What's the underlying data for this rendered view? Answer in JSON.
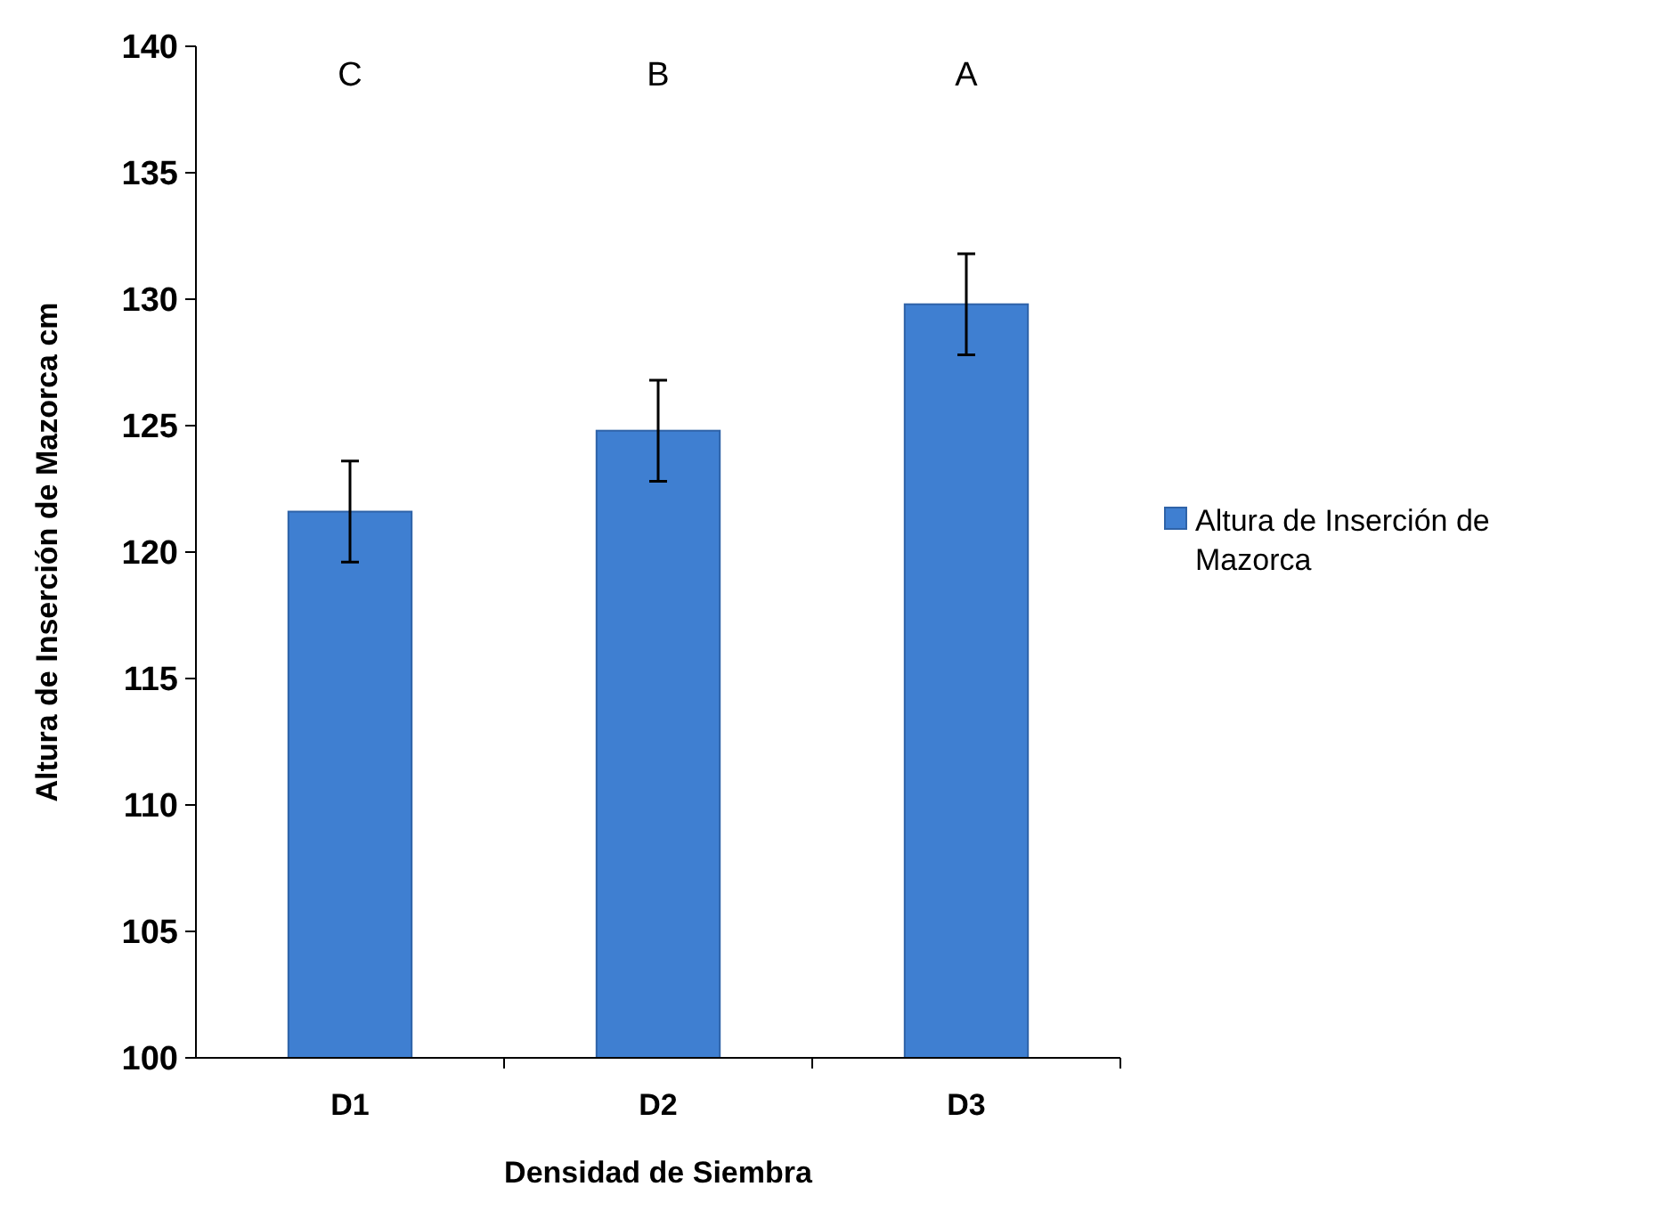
{
  "chart_data": {
    "type": "bar",
    "xlabel": "Densidad de Siembra",
    "ylabel": "Altura de Inserción de Mazorca cm",
    "categories": [
      "D1",
      "D2",
      "D3"
    ],
    "series": [
      {
        "name": "Altura de Inserción de Mazorca",
        "color": "#3f7fd1",
        "values": [
          121.6,
          124.8,
          129.8
        ],
        "errors": [
          2,
          2,
          2
        ]
      }
    ],
    "ylim": [
      100,
      140
    ],
    "yticks": [
      100,
      105,
      110,
      115,
      120,
      125,
      130,
      135,
      140
    ],
    "grid": false,
    "legend": "right",
    "annotations": [
      "C",
      "B",
      "A"
    ]
  }
}
